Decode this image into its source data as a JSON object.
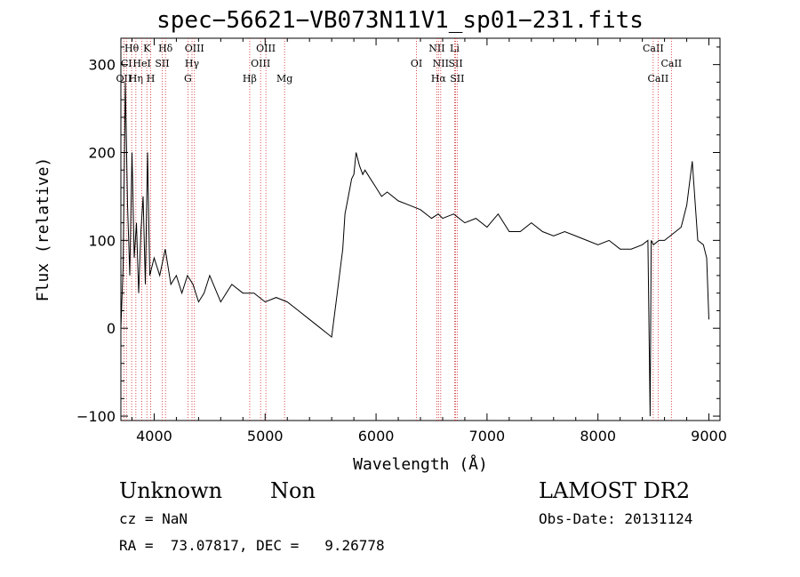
{
  "chart_data": {
    "type": "line",
    "title": "spec−56621−VB073N11V1_sp01−231.fits",
    "xlabel": "Wavelength (Å)",
    "ylabel": "Flux (relative)",
    "xlim": [
      3700,
      9100
    ],
    "ylim": [
      -105,
      330
    ],
    "xticks": [
      4000,
      5000,
      6000,
      7000,
      8000,
      9000
    ],
    "yticks": [
      -100,
      0,
      100,
      200,
      300
    ],
    "xtick_labels": [
      "4000",
      "5000",
      "6000",
      "7000",
      "8000",
      "9000"
    ],
    "ytick_labels": [
      "−100",
      "0",
      "100",
      "200",
      "300"
    ],
    "series": [
      {
        "x": [
          3700,
          3720,
          3740,
          3760,
          3780,
          3800,
          3820,
          3840,
          3860,
          3880,
          3900,
          3920,
          3940,
          3960,
          3980,
          4000,
          4050,
          4100,
          4150,
          4200,
          4250,
          4300,
          4350,
          4400,
          4450,
          4500,
          4600,
          4700,
          4800,
          4900,
          5000,
          5100,
          5200,
          5300,
          5400,
          5500,
          5550,
          5600,
          5650,
          5680,
          5700,
          5720,
          5750,
          5780,
          5800,
          5820,
          5850,
          5880,
          5900,
          5950,
          6000,
          6050,
          6100,
          6200,
          6300,
          6400,
          6500,
          6560,
          6600,
          6700,
          6800,
          6900,
          7000,
          7100,
          7200,
          7300,
          7400,
          7500,
          7600,
          7700,
          7800,
          7900,
          8000,
          8100,
          8200,
          8300,
          8400,
          8450,
          8470,
          8480,
          8500,
          8550,
          8600,
          8700,
          8750,
          8800,
          8850,
          8900,
          8950,
          8980,
          9000
        ],
        "y": [
          0,
          70,
          280,
          140,
          60,
          200,
          80,
          120,
          40,
          110,
          150,
          50,
          200,
          60,
          70,
          80,
          60,
          90,
          50,
          60,
          40,
          60,
          50,
          30,
          40,
          60,
          30,
          50,
          40,
          40,
          30,
          35,
          30,
          20,
          10,
          0,
          -5,
          -10,
          40,
          70,
          90,
          130,
          150,
          170,
          175,
          200,
          185,
          175,
          180,
          170,
          160,
          150,
          155,
          145,
          140,
          135,
          125,
          130,
          125,
          130,
          120,
          125,
          115,
          130,
          110,
          110,
          120,
          110,
          105,
          110,
          105,
          100,
          95,
          100,
          90,
          90,
          95,
          100,
          -100,
          100,
          95,
          100,
          100,
          110,
          115,
          140,
          190,
          100,
          95,
          80,
          10
        ]
      }
    ],
    "lines": [
      {
        "wavelength": 3727,
        "labels": [
          "OII"
        ],
        "row": 3
      },
      {
        "wavelength": 3750,
        "labels": [
          "CI"
        ],
        "row": 2
      },
      {
        "wavelength": 3797,
        "labels": [
          "Hθ"
        ],
        "row": 1
      },
      {
        "wavelength": 3835,
        "labels": [
          "Hη"
        ],
        "row": 3
      },
      {
        "wavelength": 3889,
        "labels": [
          "HeI"
        ],
        "row": 2
      },
      {
        "wavelength": 3934,
        "labels": [
          "K"
        ],
        "row": 1
      },
      {
        "wavelength": 3969,
        "labels": [
          "H"
        ],
        "row": 3
      },
      {
        "wavelength": 4072,
        "labels": [
          "SII"
        ],
        "row": 2
      },
      {
        "wavelength": 4102,
        "labels": [
          "Hδ"
        ],
        "row": 1
      },
      {
        "wavelength": 4304,
        "labels": [
          "G"
        ],
        "row": 3
      },
      {
        "wavelength": 4341,
        "labels": [
          "Hγ"
        ],
        "row": 2
      },
      {
        "wavelength": 4363,
        "labels": [
          "OIII"
        ],
        "row": 1
      },
      {
        "wavelength": 4861,
        "labels": [
          "Hβ"
        ],
        "row": 3
      },
      {
        "wavelength": 4959,
        "labels": [
          "OIII"
        ],
        "row": 2
      },
      {
        "wavelength": 5007,
        "labels": [
          "OIII"
        ],
        "row": 1
      },
      {
        "wavelength": 5175,
        "labels": [
          "Mg"
        ],
        "row": 3
      },
      {
        "wavelength": 6364,
        "labels": [
          "OI"
        ],
        "row": 2
      },
      {
        "wavelength": 6548,
        "labels": [
          "NII"
        ],
        "row": 1
      },
      {
        "wavelength": 6563,
        "labels": [
          "Hα"
        ],
        "row": 3
      },
      {
        "wavelength": 6583,
        "labels": [
          "NII"
        ],
        "row": 2
      },
      {
        "wavelength": 6708,
        "labels": [
          "Li"
        ],
        "row": 1
      },
      {
        "wavelength": 6717,
        "labels": [
          "SII"
        ],
        "row": 2
      },
      {
        "wavelength": 6731,
        "labels": [
          "SII"
        ],
        "row": 3
      },
      {
        "wavelength": 8498,
        "labels": [
          "CaII"
        ],
        "row": 1
      },
      {
        "wavelength": 8542,
        "labels": [
          "CaII"
        ],
        "row": 3
      },
      {
        "wavelength": 8662,
        "labels": [
          "CaII"
        ],
        "row": 2
      }
    ]
  },
  "info": {
    "class": "Unknown",
    "subclass": "Non",
    "survey": "LAMOST DR2",
    "cz": "cz = NaN",
    "obs_date": "Obs-Date: 20131124",
    "coords": "RA =  73.07817, DEC =   9.26778"
  },
  "colors": {
    "line_markers": "#cc2222",
    "spectrum": "#000000"
  }
}
